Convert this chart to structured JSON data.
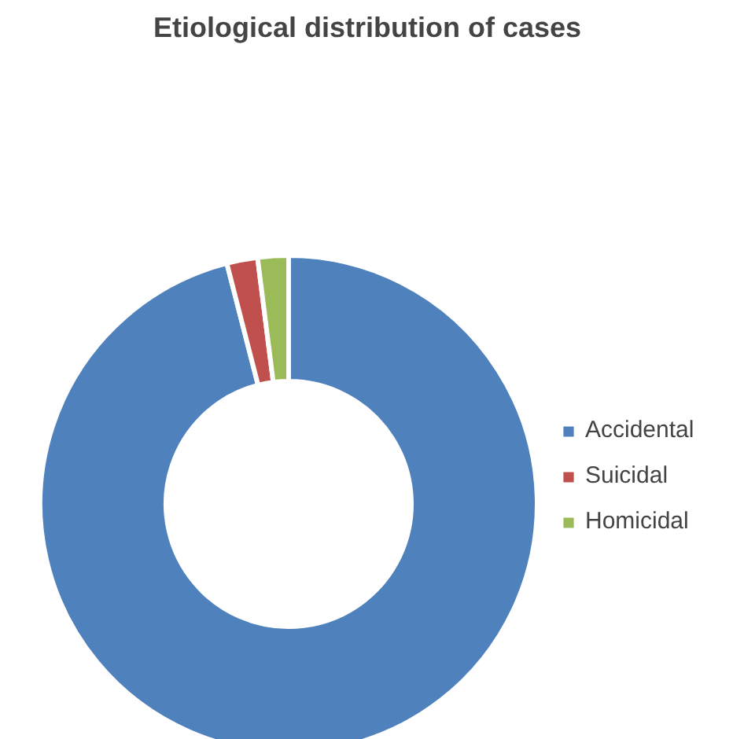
{
  "chart_data": {
    "type": "donut",
    "title": "Etiological distribution of cases",
    "categories": [
      "Accidental",
      "Suicidal",
      "Homicidal"
    ],
    "values": [
      96,
      2,
      2
    ],
    "colors": [
      "#4f81bd",
      "#c0504d",
      "#9bbb59"
    ],
    "legend": "right"
  }
}
